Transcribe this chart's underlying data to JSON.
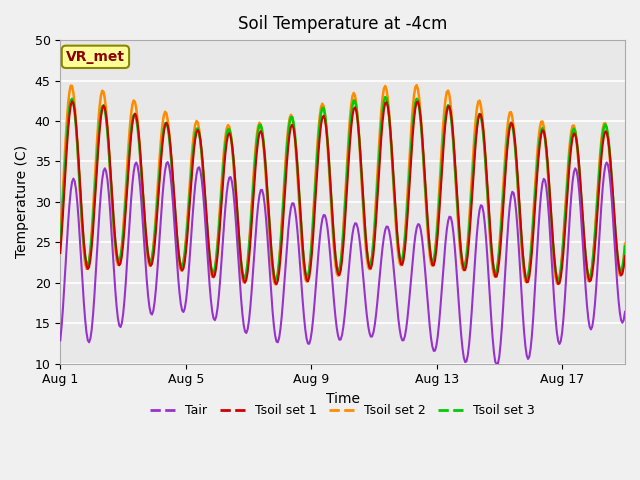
{
  "title": "Soil Temperature at -4cm",
  "xlabel": "Time",
  "ylabel": "Temperature (C)",
  "ylim": [
    10,
    50
  ],
  "xlim": [
    0,
    18
  ],
  "x_ticks_days": [
    0,
    4,
    8,
    12,
    16
  ],
  "x_tick_labels": [
    "Aug 1",
    "Aug 5",
    "Aug 9",
    "Aug 13",
    "Aug 17"
  ],
  "y_ticks": [
    10,
    15,
    20,
    25,
    30,
    35,
    40,
    45,
    50
  ],
  "colors": {
    "Tair": "#9932CC",
    "Tsoil1": "#CC0000",
    "Tsoil2": "#FF8C00",
    "Tsoil3": "#00CC00"
  },
  "line_widths": {
    "Tair": 1.5,
    "Tsoil1": 1.5,
    "Tsoil2": 1.8,
    "Tsoil3": 1.8
  },
  "legend_labels": [
    "Tair",
    "Tsoil set 1",
    "Tsoil set 2",
    "Tsoil set 3"
  ],
  "annotation_text": "VR_met",
  "annotation_color": "#8B0000",
  "fig_bg_color": "#F0F0F0",
  "plot_bg_color": "#E8E8E8",
  "grid_color": "#FFFFFF",
  "title_fontsize": 12,
  "axis_label_fontsize": 10,
  "tick_fontsize": 9,
  "legend_fontsize": 9
}
